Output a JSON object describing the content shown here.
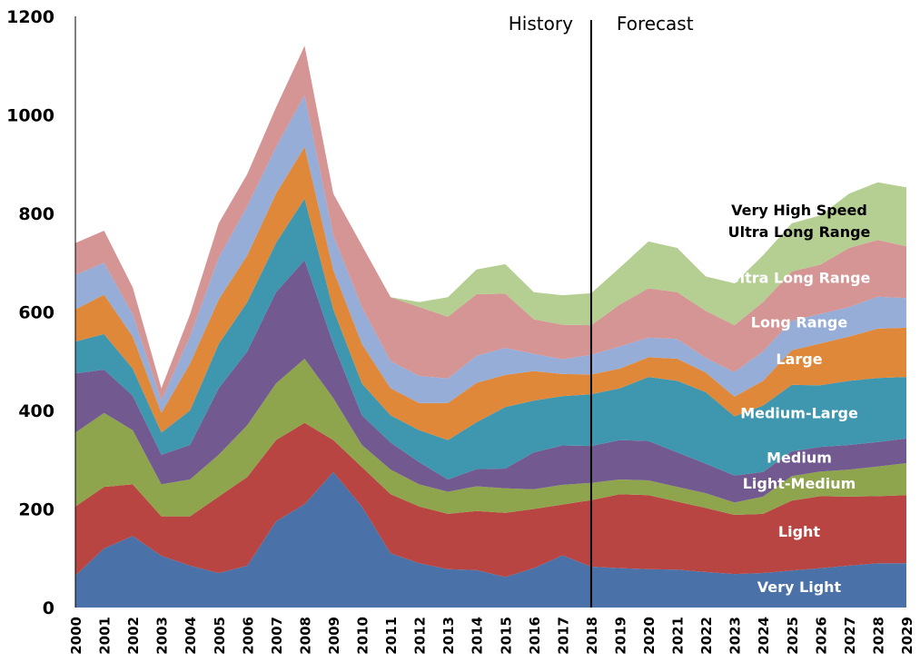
{
  "chart_data": {
    "type": "area",
    "stacked": true,
    "x": [
      "2000",
      "2001",
      "2002",
      "2003",
      "2004",
      "2005",
      "2006",
      "2007",
      "2008",
      "2009",
      "2010",
      "2011",
      "2012",
      "2013",
      "2014",
      "2015",
      "2016",
      "2017",
      "2018",
      "2019",
      "2020",
      "2021",
      "2022",
      "2023",
      "2024",
      "2025",
      "2026",
      "2027",
      "2028",
      "2029"
    ],
    "ylim": [
      0,
      1200
    ],
    "yticks": [
      "0",
      "200",
      "400",
      "600",
      "800",
      "1000",
      "1200"
    ],
    "grid": false,
    "divider_after": "2018",
    "annotations": {
      "history": "History",
      "forecast": "Forecast"
    },
    "series": [
      {
        "name": "Very Light",
        "color": "#4a72a8",
        "label_color": "#ffffff",
        "values": [
          65,
          120,
          145,
          105,
          85,
          70,
          85,
          175,
          210,
          275,
          205,
          110,
          90,
          78,
          76,
          62,
          80,
          106,
          83,
          80,
          78,
          77,
          72,
          68,
          70,
          75,
          80,
          85,
          90,
          90
        ]
      },
      {
        "name": "Light",
        "color": "#b84541",
        "label_color": "#ffffff",
        "values": [
          140,
          125,
          105,
          80,
          100,
          155,
          180,
          165,
          165,
          65,
          80,
          120,
          115,
          112,
          120,
          130,
          120,
          103,
          135,
          150,
          150,
          138,
          130,
          120,
          120,
          142,
          146,
          140,
          136,
          138
        ]
      },
      {
        "name": "Light-Medium",
        "color": "#8ea54d",
        "label_color": "#ffffff",
        "values": [
          150,
          150,
          110,
          65,
          75,
          85,
          105,
          115,
          130,
          85,
          45,
          50,
          45,
          45,
          50,
          50,
          40,
          40,
          35,
          30,
          30,
          30,
          30,
          25,
          35,
          50,
          50,
          55,
          60,
          65
        ]
      },
      {
        "name": "Medium",
        "color": "#725a91",
        "label_color": "#ffffff",
        "values": [
          120,
          88,
          70,
          60,
          70,
          135,
          150,
          185,
          200,
          110,
          60,
          55,
          45,
          25,
          35,
          40,
          75,
          80,
          75,
          80,
          80,
          70,
          60,
          55,
          50,
          50,
          50,
          50,
          50,
          50
        ]
      },
      {
        "name": "Medium-Large",
        "color": "#3e97ae",
        "label_color": "#ffffff",
        "values": [
          65,
          72,
          55,
          45,
          70,
          90,
          100,
          100,
          125,
          70,
          65,
          55,
          65,
          80,
          95,
          125,
          105,
          100,
          105,
          105,
          130,
          145,
          145,
          120,
          135,
          135,
          125,
          130,
          130,
          125
        ]
      },
      {
        "name": "Large",
        "color": "#e0883a",
        "label_color": "#ffffff",
        "values": [
          65,
          80,
          65,
          40,
          95,
          90,
          95,
          100,
          105,
          80,
          80,
          55,
          55,
          75,
          80,
          65,
          60,
          45,
          40,
          40,
          40,
          45,
          40,
          40,
          50,
          70,
          85,
          90,
          100,
          100
        ]
      },
      {
        "name": "Long Range",
        "color": "#95add7",
        "label_color": "#ffffff",
        "values": [
          70,
          65,
          45,
          25,
          55,
          85,
          100,
          95,
          105,
          70,
          75,
          55,
          55,
          50,
          55,
          55,
          35,
          30,
          40,
          45,
          40,
          40,
          30,
          50,
          60,
          60,
          60,
          60,
          65,
          60
        ]
      },
      {
        "name": "Ultra Long Range",
        "color": "#d59594",
        "label_color": "#ffffff",
        "values": [
          65,
          65,
          55,
          25,
          45,
          70,
          65,
          80,
          100,
          85,
          125,
          130,
          140,
          125,
          125,
          110,
          70,
          70,
          60,
          85,
          100,
          95,
          95,
          95,
          100,
          100,
          100,
          120,
          115,
          105
        ]
      },
      {
        "name": "Very High Speed\nUltra Long Range",
        "color": "#b5cf93",
        "label_color": "#000000",
        "values": [
          0,
          0,
          0,
          0,
          0,
          0,
          0,
          0,
          0,
          0,
          0,
          0,
          10,
          40,
          50,
          60,
          55,
          60,
          65,
          75,
          95,
          90,
          70,
          85,
          95,
          98,
          100,
          110,
          117,
          120
        ]
      }
    ]
  }
}
